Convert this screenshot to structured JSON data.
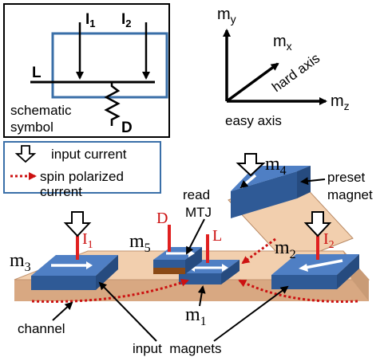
{
  "schematic": {
    "label_i1": "I",
    "sub_i1": "1",
    "label_i2": "I",
    "sub_i2": "2",
    "label_l": "L",
    "label_d": "D",
    "caption_line1": "schematic",
    "caption_line2": "symbol"
  },
  "axes": {
    "my": "m",
    "my_sub": "y",
    "mx": "m",
    "mx_sub": "x",
    "mz": "m",
    "mz_sub": "z",
    "hard_axis": "hard axis",
    "easy_axis": "easy axis"
  },
  "legend": {
    "input_current": "input current",
    "spin_line1": "spin polarized",
    "spin_line2": "current"
  },
  "device": {
    "m1": "m",
    "m1_sub": "1",
    "m2": "m",
    "m2_sub": "2",
    "m3": "m",
    "m3_sub": "3",
    "m4": "m",
    "m4_sub": "4",
    "m5": "m",
    "m5_sub": "5",
    "i1": "I",
    "i1_sub": "1",
    "i2": "I",
    "i2_sub": "2",
    "d": "D",
    "l": "L",
    "read_line1": "read",
    "read_line2": "MTJ",
    "preset_line1": "preset",
    "preset_line2": "magnet",
    "channel": "channel",
    "input_magnets": "input  magnets"
  },
  "colors": {
    "magnet_top": "#4f7fc4",
    "magnet_side": "#2f5a96",
    "channel_top": "#f2cfae",
    "channel_side": "#d8a882",
    "spin_red": "#cc1111",
    "schematic_box": "#3a6fa8"
  }
}
